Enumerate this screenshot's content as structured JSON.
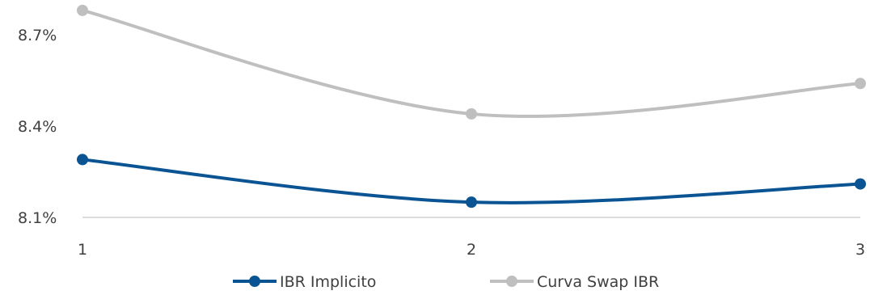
{
  "chart_data": {
    "type": "line",
    "title": "",
    "xlabel": "",
    "ylabel": "",
    "x": [
      "1",
      "2",
      "3"
    ],
    "y_ticks": [
      "8.1%",
      "8.4%",
      "8.7%"
    ],
    "ylim": [
      8.1,
      8.7
    ],
    "grid": false,
    "smooth": true,
    "legend_position": "bottom",
    "series": [
      {
        "name": "IBR Implicito",
        "color": "#0a5494",
        "values": [
          8.29,
          8.15,
          8.21
        ]
      },
      {
        "name": "Curva Swap IBR",
        "color": "#bfbfbf",
        "values": [
          8.78,
          8.44,
          8.54
        ]
      }
    ]
  }
}
